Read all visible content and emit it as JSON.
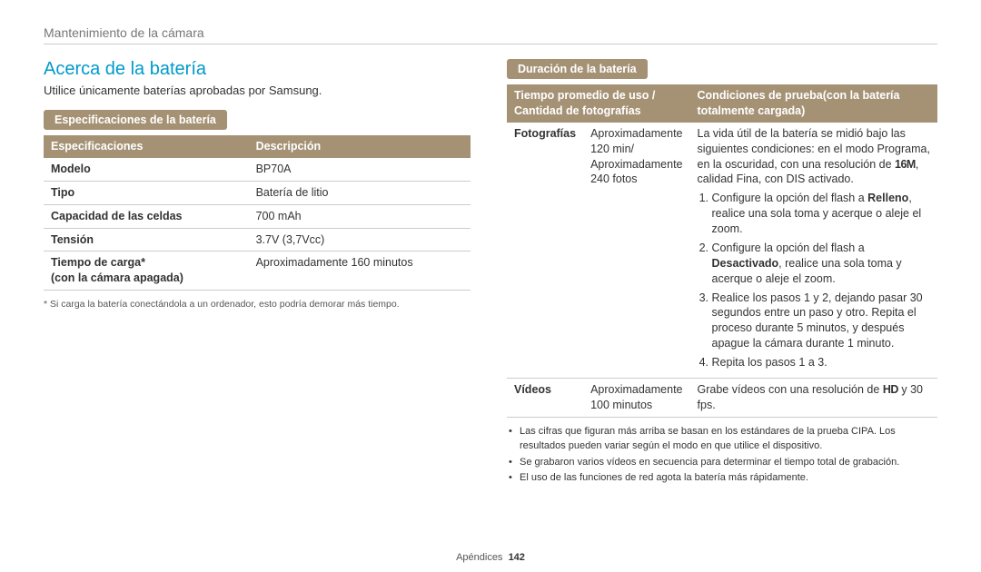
{
  "breadcrumb": "Mantenimiento de la cámara",
  "section_title": "Acerca de la batería",
  "intro_text": "Utilice únicamente baterías aprobadas por Samsung.",
  "spec_pill": "Especificaciones de la batería",
  "spec_table": {
    "head_spec": "Especificaciones",
    "head_desc": "Descripción",
    "rows": {
      "r0": {
        "label": "Modelo",
        "value": "BP70A"
      },
      "r1": {
        "label": "Tipo",
        "value": "Batería de litio"
      },
      "r2": {
        "label": "Capacidad de las celdas",
        "value": "700 mAh"
      },
      "r3": {
        "label": "Tensión",
        "value": "3.7V (3,7Vcc)"
      },
      "r4": {
        "label_l1": "Tiempo de carga*",
        "label_l2": "(con la cámara apagada)",
        "value": "Aproximadamente 160 minutos"
      }
    }
  },
  "spec_footnote": "*  Si carga la batería conectándola a un ordenador, esto podría demorar más tiempo.",
  "duration_pill": "Duración de la batería",
  "duration_table": {
    "head_usage": "Tiempo promedio de uso / Cantidad de fotografías",
    "head_cond": "Condiciones de prueba(con la batería totalmente cargada)",
    "foto_label": "Fotografías",
    "foto_usage_l1": "Aproximadamente",
    "foto_usage_l2": "120 min/",
    "foto_usage_l3": "Aproximadamente",
    "foto_usage_l4": "240 fotos",
    "cond_intro_l1": "La vida útil de la batería se midió bajo las siguientes condiciones: en el modo Programa, en la oscuridad, con una resolución de ",
    "cond_icon1": "16M",
    "cond_intro_l2": ", calidad Fina, con DIS activado.",
    "step1_a": "Configure la opción del flash a ",
    "step1_b": "Relleno",
    "step1_c": ", realice una sola toma y acerque o aleje el zoom.",
    "step2_a": "Configure la opción del flash a ",
    "step2_b": "Desactivado",
    "step2_c": ", realice una sola toma y acerque o aleje el zoom.",
    "step3": "Realice los pasos 1 y 2, dejando pasar 30 segundos entre un paso y otro. Repita el proceso durante 5 minutos, y después apague la cámara durante 1 minuto.",
    "step4": "Repita los pasos 1 a 3.",
    "video_label": "Vídeos",
    "video_usage_l1": "Aproximadamente",
    "video_usage_l2": "100 minutos",
    "video_cond_a": "Grabe vídeos con una resolución de ",
    "video_cond_icon": "HD",
    "video_cond_b": " y 30 fps."
  },
  "right_bullets": {
    "b1": "Las cifras que figuran más arriba se basan en los estándares de la prueba CIPA. Los resultados pueden variar según el modo en que utilice el dispositivo.",
    "b2": "Se grabaron varios vídeos en secuencia para determinar el tiempo total de grabación.",
    "b3": "El uso de las funciones de red agota la batería más rápidamente."
  },
  "footer_label": "Apéndices",
  "footer_page": "142",
  "colors": {
    "accent": "#0099cc",
    "pill_bg": "#a59275",
    "pill_fg": "#ffffff",
    "border": "#cccccc"
  }
}
